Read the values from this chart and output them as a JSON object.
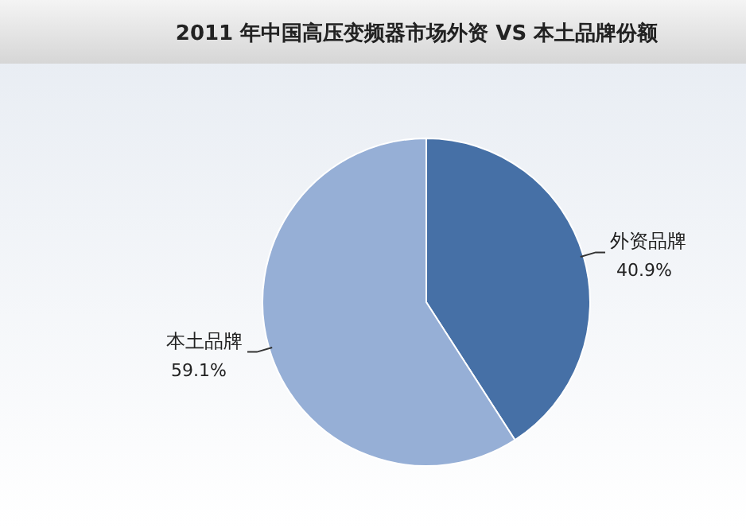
{
  "chart_data": {
    "type": "pie",
    "title": "2011 年中国高压变频器市场外资 VS 本土品牌份额",
    "categories": [
      "外资品牌",
      "本土品牌"
    ],
    "values": [
      40.9,
      59.1
    ],
    "colors": [
      "#4670a6",
      "#96afd6"
    ],
    "value_labels": [
      "40.9%",
      "59.1%"
    ]
  }
}
